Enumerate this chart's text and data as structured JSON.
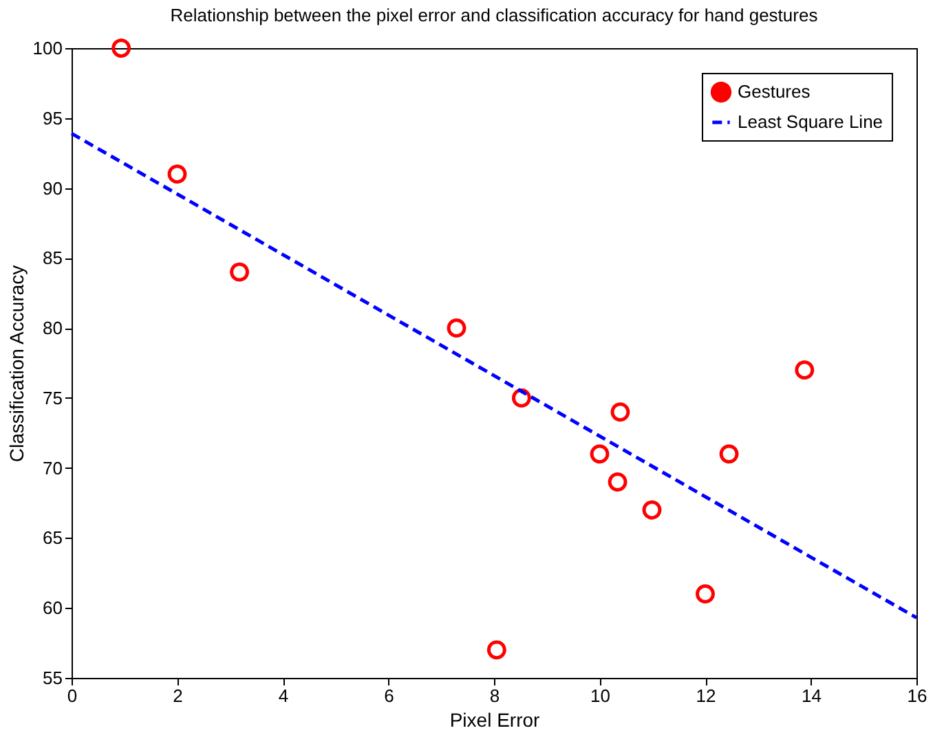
{
  "chart_data": {
    "type": "scatter",
    "title": "Relationship between the pixel error and classification accuracy for hand gestures",
    "xlabel": "Pixel Error",
    "ylabel": "Classification Accuracy",
    "xlim": [
      0,
      16
    ],
    "xticks": [
      0,
      2,
      4,
      6,
      8,
      10,
      12,
      14,
      16
    ],
    "ylim": [
      55,
      100
    ],
    "yticks": [
      55,
      60,
      65,
      70,
      75,
      80,
      85,
      90,
      95,
      100
    ],
    "grid": false,
    "legend": "top right",
    "series": [
      {
        "name": "Gestures",
        "marker": "circle",
        "color": "#ff0000",
        "x": [
          0.94,
          2.0,
          3.18,
          7.29,
          8.52,
          10.0,
          10.39,
          10.34,
          10.99,
          12.0,
          8.05,
          12.45,
          13.88
        ],
        "values": [
          100,
          91,
          84,
          80,
          75,
          71,
          74,
          69,
          67,
          61,
          57,
          71,
          77
        ]
      },
      {
        "name": "Least Square Line",
        "type": "line",
        "line_style": "dashed",
        "color": "#0000ff",
        "x": [
          0,
          16
        ],
        "values": [
          93.9,
          59.3
        ]
      }
    ]
  }
}
